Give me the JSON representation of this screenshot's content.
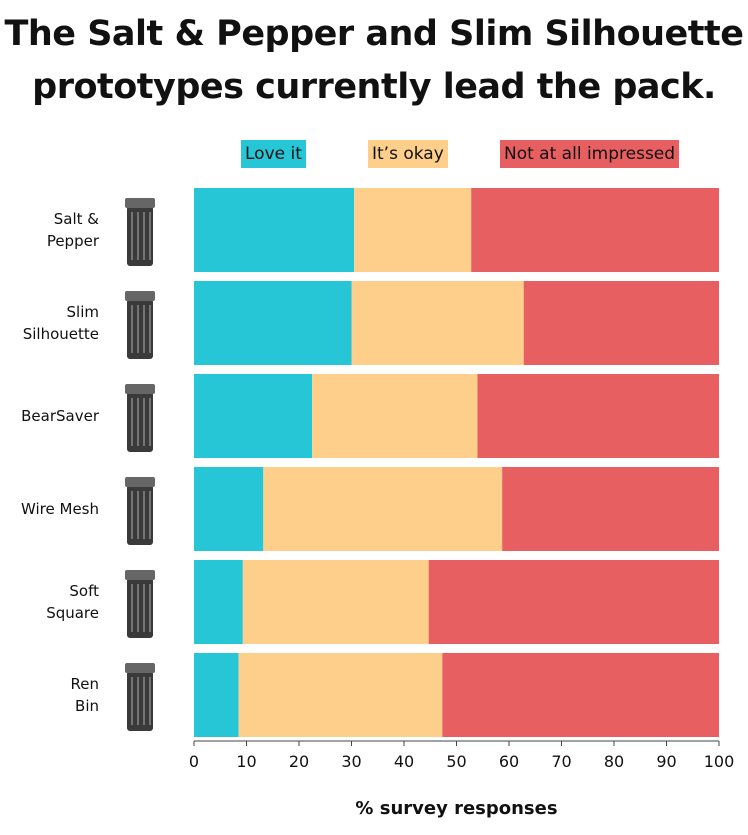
{
  "chart_data": {
    "type": "bar",
    "orientation": "horizontal",
    "stacked": true,
    "title": "The Salt & Pepper and Slim Silhouette prototypes currently lead the pack.",
    "title_lines": [
      "The Salt & Pepper and Slim Silhouette",
      "prototypes currently lead the pack."
    ],
    "categories": [
      [
        "Salt &",
        "Pepper"
      ],
      [
        "Slim",
        "Silhouette"
      ],
      [
        "BearSaver"
      ],
      [
        "Wire Mesh"
      ],
      [
        "Soft",
        "Square"
      ],
      [
        "Ren",
        "Bin"
      ]
    ],
    "category_icons": [
      "trash-can-icon",
      "trash-can-icon",
      "trash-can-icon",
      "trash-can-icon",
      "trash-can-icon",
      "trash-can-icon"
    ],
    "series": [
      {
        "name": "Love it",
        "color": "#27c6d6",
        "values": [
          30.5,
          30,
          22.5,
          13.2,
          9.3,
          8.5
        ]
      },
      {
        "name": "It’s okay",
        "color": "#fdcf8b",
        "values": [
          22.3,
          32.8,
          31.5,
          45.5,
          35.4,
          38.8
        ]
      },
      {
        "name": "Not at all impressed",
        "color": "#e85f61",
        "values": [
          47.2,
          37.2,
          46,
          41.3,
          55.3,
          52.7
        ]
      }
    ],
    "xlabel": "% survey responses",
    "ylabel": "",
    "xlim": [
      0,
      100
    ],
    "xticks": [
      0,
      10,
      20,
      30,
      40,
      50,
      60,
      70,
      80,
      90,
      100
    ],
    "grid": false,
    "legend_position": "top"
  }
}
